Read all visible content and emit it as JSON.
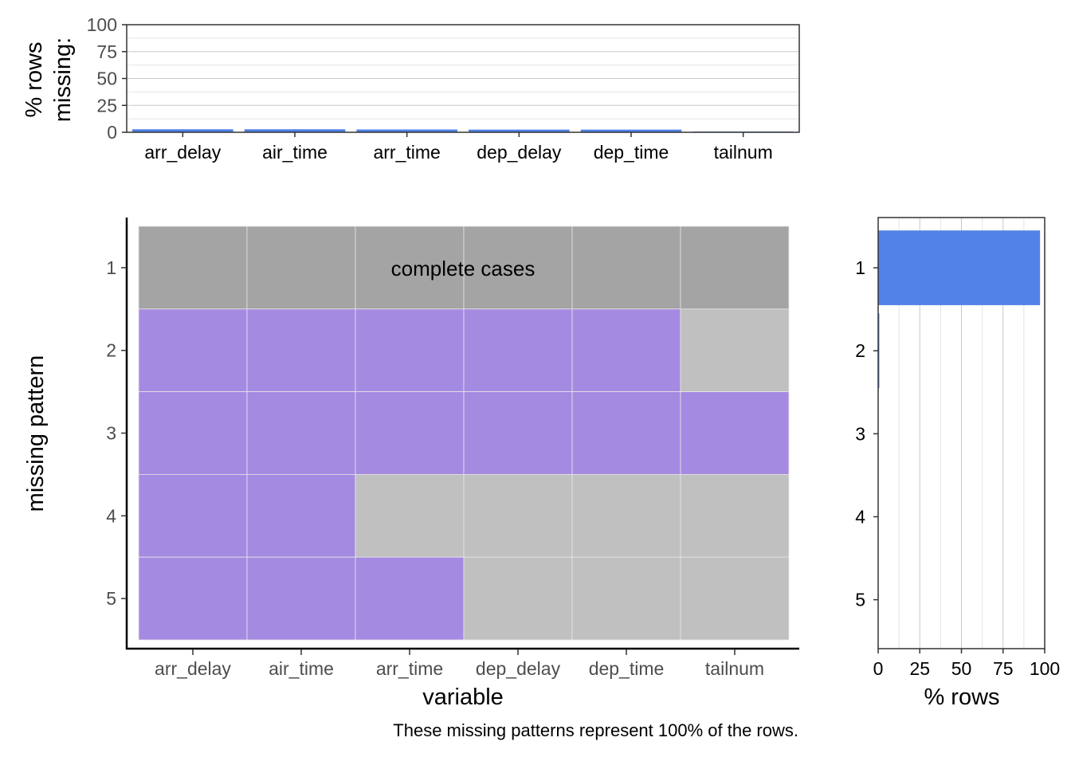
{
  "chart_data": [
    {
      "type": "bar",
      "categories": [
        "arr_delay",
        "air_time",
        "arr_time",
        "dep_delay",
        "dep_time",
        "tailnum"
      ],
      "values": [
        2.8,
        2.8,
        2.6,
        2.5,
        2.5,
        0.7
      ],
      "ylabel": "% rows\nmissing:",
      "ylim": [
        0,
        100
      ],
      "yticks": [
        0,
        25,
        50,
        75,
        100
      ],
      "grid": true
    },
    {
      "type": "heatmap",
      "variables": [
        "arr_delay",
        "air_time",
        "arr_time",
        "dep_delay",
        "dep_time",
        "tailnum"
      ],
      "patterns": [
        "1",
        "2",
        "3",
        "4",
        "5"
      ],
      "missing_matrix": [
        [
          false,
          false,
          false,
          false,
          false,
          false
        ],
        [
          true,
          true,
          true,
          true,
          true,
          false
        ],
        [
          true,
          true,
          true,
          true,
          true,
          true
        ],
        [
          true,
          true,
          false,
          false,
          false,
          false
        ],
        [
          true,
          true,
          true,
          false,
          false,
          false
        ]
      ],
      "annotation": "complete cases",
      "xlabel": "variable",
      "ylabel": "missing pattern",
      "caption": "These missing patterns represent 100% of the rows."
    },
    {
      "type": "bar",
      "orientation": "horizontal",
      "categories": [
        "1",
        "2",
        "3",
        "4",
        "5"
      ],
      "values": [
        97.2,
        0.7,
        0.2,
        0.2,
        0.0
      ],
      "xlabel": "% rows",
      "xlim": [
        0,
        100
      ],
      "xticks": [
        0,
        25,
        50,
        75,
        100
      ],
      "grid": true
    }
  ],
  "colors": {
    "bar": "#5281e8",
    "missing": "#a58ae2",
    "complete": "#a4a4a4",
    "not_missing": "#c0c0c0"
  }
}
